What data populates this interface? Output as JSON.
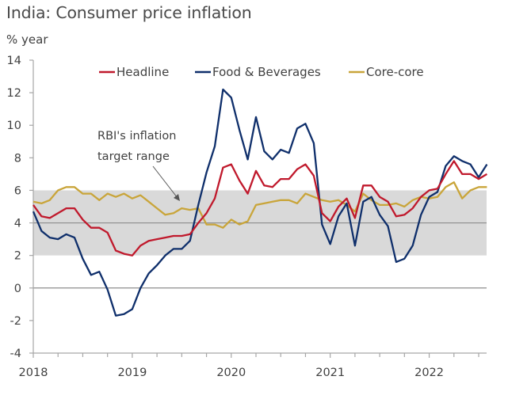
{
  "chart_data": {
    "type": "line",
    "title": "India: Consumer price inflation",
    "ylabel": "% year",
    "xlabel": "",
    "ylim": [
      -4,
      14
    ],
    "yticks": [
      -4,
      -2,
      0,
      2,
      4,
      6,
      8,
      10,
      12,
      14
    ],
    "xlim": [
      2018.0,
      2022.58
    ],
    "xticks": [
      2018,
      2019,
      2020,
      2021,
      2022
    ],
    "xtick_labels": [
      "2018",
      "2019",
      "2020",
      "2021",
      "2022"
    ],
    "grid": false,
    "reference_lines": [
      0,
      4
    ],
    "shaded_band": {
      "from": 2,
      "to": 6,
      "label": "RBI's inflation target range",
      "color": "#d9d9d9"
    },
    "annotation": {
      "lines": [
        "RBI's inflation",
        "target range"
      ]
    },
    "legend": {
      "placement": "top-center",
      "entries": [
        "Headline",
        "Food & Beverages",
        "Core-core"
      ]
    },
    "x_start": 2018.0,
    "x_step_months": 1,
    "series": [
      {
        "name": "Headline",
        "color": "#c0192c",
        "values": [
          5.1,
          4.4,
          4.3,
          4.6,
          4.9,
          4.9,
          4.2,
          3.7,
          3.7,
          3.4,
          2.3,
          2.1,
          2.0,
          2.6,
          2.9,
          3.0,
          3.1,
          3.2,
          3.2,
          3.3,
          4.0,
          4.6,
          5.5,
          7.4,
          7.6,
          6.6,
          5.8,
          7.2,
          6.3,
          6.2,
          6.7,
          6.7,
          7.3,
          7.6,
          6.9,
          4.6,
          4.1,
          5.0,
          5.5,
          4.3,
          6.3,
          6.3,
          5.6,
          5.3,
          4.4,
          4.5,
          4.9,
          5.6,
          6.0,
          6.1,
          7.0,
          7.8,
          7.0,
          7.0,
          6.7,
          7.0
        ]
      },
      {
        "name": "Food & Beverages",
        "color": "#0f2f6b",
        "values": [
          4.7,
          3.5,
          3.1,
          3.0,
          3.3,
          3.1,
          1.8,
          0.8,
          1.0,
          -0.1,
          -1.7,
          -1.6,
          -1.3,
          0.0,
          0.9,
          1.4,
          2.0,
          2.4,
          2.4,
          2.9,
          5.1,
          7.1,
          8.7,
          12.2,
          11.7,
          9.7,
          7.9,
          10.5,
          8.4,
          7.9,
          8.5,
          8.3,
          9.8,
          10.1,
          8.9,
          3.9,
          2.7,
          4.4,
          5.2,
          2.6,
          5.3,
          5.6,
          4.5,
          3.8,
          1.6,
          1.8,
          2.6,
          4.5,
          5.6,
          5.9,
          7.5,
          8.1,
          7.8,
          7.6,
          6.8,
          7.6
        ]
      },
      {
        "name": "Core-core",
        "color": "#c9a53a",
        "values": [
          5.3,
          5.2,
          5.4,
          6.0,
          6.2,
          6.2,
          5.8,
          5.8,
          5.4,
          5.8,
          5.6,
          5.8,
          5.5,
          5.7,
          5.3,
          4.9,
          4.5,
          4.6,
          4.9,
          4.8,
          4.9,
          3.9,
          3.9,
          3.7,
          4.2,
          3.9,
          4.1,
          5.1,
          5.2,
          5.3,
          5.4,
          5.4,
          5.2,
          5.8,
          5.6,
          5.4,
          5.3,
          5.4,
          5.1,
          4.7,
          5.8,
          5.4,
          5.1,
          5.1,
          5.2,
          5.0,
          5.4,
          5.6,
          5.5,
          5.6,
          6.2,
          6.5,
          5.5,
          6.0,
          6.2,
          6.2
        ]
      }
    ]
  }
}
